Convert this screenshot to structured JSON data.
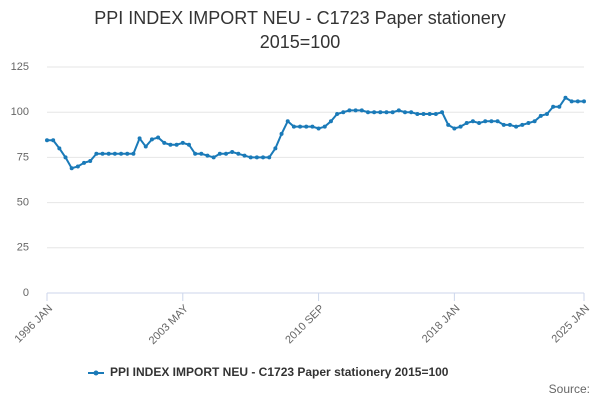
{
  "chart_data": {
    "type": "line",
    "title": "PPI INDEX IMPORT NEU - C1723 Paper stationery 2015=100",
    "source": "Source:",
    "categories": [
      "1996 JAN",
      null,
      null,
      null,
      null,
      null,
      null,
      null,
      null,
      null,
      null,
      null,
      null,
      null,
      null,
      null,
      null,
      null,
      null,
      null,
      null,
      null,
      "2003 MAY",
      null,
      null,
      null,
      null,
      null,
      null,
      null,
      null,
      null,
      null,
      null,
      null,
      null,
      null,
      null,
      null,
      null,
      null,
      null,
      null,
      null,
      "2010 SEP",
      null,
      null,
      null,
      null,
      null,
      null,
      null,
      null,
      null,
      null,
      null,
      null,
      null,
      null,
      null,
      null,
      null,
      null,
      null,
      null,
      null,
      "2018 JAN",
      null,
      null,
      null,
      null,
      null,
      null,
      null,
      null,
      null,
      null,
      null,
      null,
      null,
      null,
      null,
      null,
      null,
      null,
      null,
      null,
      "2025 JAN"
    ],
    "series": [
      {
        "name": "PPI INDEX IMPORT NEU - C1723 Paper stationery 2015=100",
        "color": "#1a7ab8",
        "values": [
          84.5,
          84.5,
          80,
          75,
          69,
          70,
          72,
          73,
          77,
          77,
          77,
          77,
          77,
          77,
          77,
          85.5,
          81,
          85,
          86,
          83,
          82,
          82,
          83,
          82,
          77,
          77,
          76,
          75,
          77,
          77,
          78,
          77,
          76,
          75,
          75,
          75,
          75,
          80,
          88,
          95,
          92,
          92,
          92,
          92,
          91,
          92,
          95,
          99,
          100,
          101,
          101,
          101,
          100,
          100,
          100,
          100,
          100,
          101,
          100,
          100,
          99,
          99,
          99,
          99,
          100,
          93,
          91,
          92,
          94,
          95,
          94,
          95,
          95,
          95,
          93,
          93,
          92,
          93,
          94,
          95,
          98,
          99,
          103,
          103,
          108,
          106,
          106,
          106
        ]
      }
    ],
    "ylim": [
      0,
      125
    ],
    "yticks": [
      0,
      25,
      50,
      75,
      100,
      125
    ],
    "grid": true,
    "legend": "bottom"
  }
}
